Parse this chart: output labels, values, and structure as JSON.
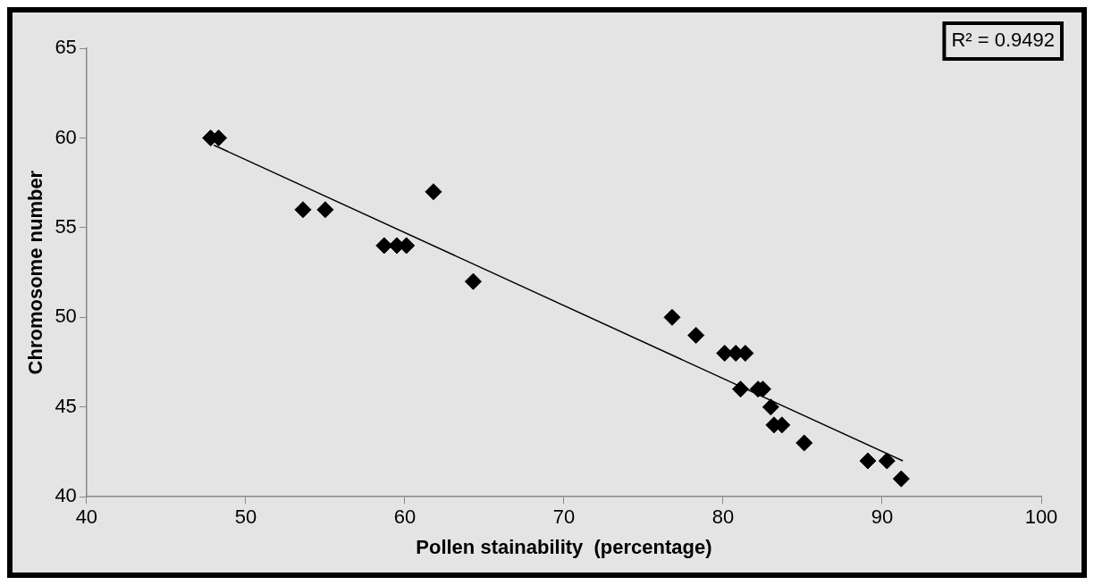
{
  "chart_data": {
    "type": "scatter",
    "xlabel": "Pollen stainability  (percentage)",
    "ylabel": "Chromosome number",
    "annotations": [
      "R² = 0.9492"
    ],
    "xlim": [
      40,
      100
    ],
    "xticks": [
      40,
      50,
      60,
      70,
      80,
      90,
      100
    ],
    "ylim": [
      40,
      65
    ],
    "yticks": [
      40,
      45,
      50,
      55,
      60,
      65
    ],
    "grid": false,
    "legend": false,
    "marker": "diamond",
    "series": [
      {
        "color": "#000000",
        "x": [
          47.8,
          48.3,
          53.6,
          55.0,
          58.7,
          59.5,
          60.1,
          61.8,
          64.3,
          76.8,
          78.3,
          80.1,
          80.8,
          81.4,
          81.1,
          82.2,
          82.5,
          83.0,
          83.2,
          83.7,
          85.1,
          89.1,
          90.3,
          91.2
        ],
        "values": [
          60,
          60,
          56,
          56,
          54,
          54,
          54,
          57,
          52,
          50,
          49,
          48,
          48,
          48,
          46,
          46,
          46,
          45,
          44,
          44,
          43,
          42,
          42,
          41
        ]
      },
      {
        "type": "line",
        "color": "#000000",
        "marker": "none",
        "line_style": "solid",
        "x": [
          48,
          91.3
        ],
        "values": [
          59.6,
          42.0
        ]
      }
    ]
  }
}
